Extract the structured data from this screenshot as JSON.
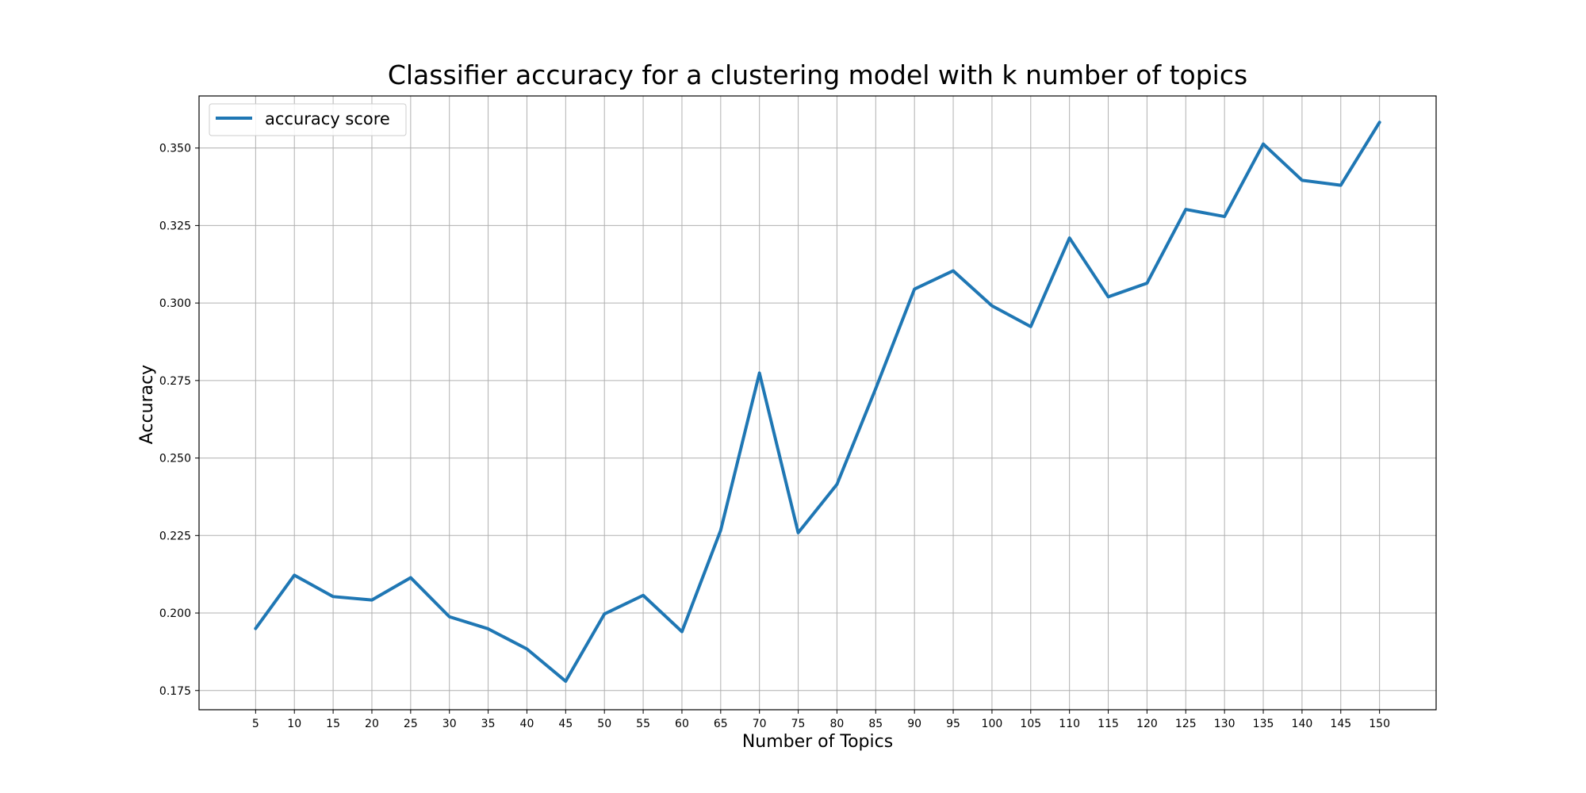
{
  "chart_data": {
    "type": "line",
    "title": "Classifier accuracy for a clustering model with k number of topics",
    "xlabel": "Number of Topics",
    "ylabel": "Accuracy",
    "x": [
      5,
      10,
      15,
      20,
      25,
      30,
      35,
      40,
      45,
      50,
      55,
      60,
      65,
      70,
      75,
      80,
      85,
      90,
      95,
      100,
      105,
      110,
      115,
      120,
      125,
      130,
      135,
      140,
      145,
      150
    ],
    "xticks": [
      "5",
      "10",
      "15",
      "20",
      "25",
      "30",
      "35",
      "40",
      "45",
      "50",
      "55",
      "60",
      "65",
      "70",
      "75",
      "80",
      "85",
      "90",
      "95",
      "100",
      "105",
      "110",
      "115",
      "120",
      "125",
      "130",
      "135",
      "140",
      "145",
      "150"
    ],
    "yticks": [
      "0.175",
      "0.200",
      "0.225",
      "0.250",
      "0.275",
      "0.300",
      "0.325",
      "0.350"
    ],
    "xlim": [
      -2.3,
      157.3
    ],
    "ylim": [
      0.1688,
      0.3668
    ],
    "grid": true,
    "legend_position": "top-left",
    "series": [
      {
        "name": "accuracy score",
        "color": "#1f77b4",
        "values": [
          0.195,
          0.2122,
          0.2053,
          0.2042,
          0.2114,
          0.1988,
          0.1949,
          0.1884,
          0.178,
          0.1997,
          0.2057,
          0.194,
          0.2267,
          0.2774,
          0.2259,
          0.2415,
          0.2724,
          0.3045,
          0.3104,
          0.2991,
          0.2924,
          0.321,
          0.302,
          0.3064,
          0.3302,
          0.3279,
          0.3513,
          0.3396,
          0.338,
          0.3583
        ]
      }
    ]
  }
}
